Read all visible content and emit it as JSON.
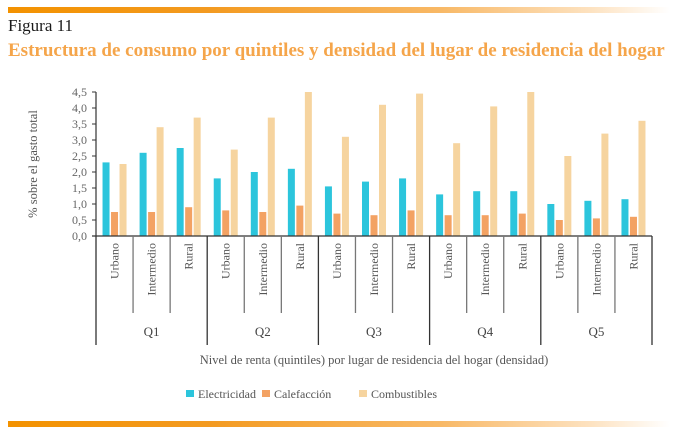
{
  "header": {
    "figure_label": "Figura 11",
    "title": "Estructura de consumo por quintiles y densidad del lugar de residencia del hogar"
  },
  "colors": {
    "rule": "#f39200",
    "title": "#f5a54a",
    "electricidad": "#2cc5dc",
    "calefaccion": "#f3a263",
    "combustibles": "#f6d49f",
    "axis": "#333333"
  },
  "chart_data": {
    "type": "bar",
    "title": "Estructura de consumo por quintiles y densidad del lugar de residencia del hogar",
    "xlabel": "Nivel de renta (quintiles) por lugar de residencia del hogar (densidad)",
    "ylabel": "% sobre el gasto total",
    "ylim": [
      0,
      4.5
    ],
    "yticks": [
      "0,0",
      "0,5",
      "1,0",
      "1,5",
      "2,0",
      "2,5",
      "3,0",
      "3,5",
      "4,0",
      "4,5"
    ],
    "groups": [
      "Q1",
      "Q2",
      "Q3",
      "Q4",
      "Q5"
    ],
    "subcategories": [
      "Urbano",
      "Intermedio",
      "Rural"
    ],
    "legend_position": "bottom",
    "grid": false,
    "series": [
      {
        "name": "Electricidad",
        "color_key": "electricidad",
        "values": [
          2.3,
          2.6,
          2.75,
          1.8,
          2.0,
          2.1,
          1.55,
          1.7,
          1.8,
          1.3,
          1.4,
          1.4,
          1.0,
          1.1,
          1.15
        ]
      },
      {
        "name": "Calefacción",
        "color_key": "calefaccion",
        "values": [
          0.75,
          0.75,
          0.9,
          0.8,
          0.75,
          0.95,
          0.7,
          0.65,
          0.8,
          0.65,
          0.65,
          0.7,
          0.5,
          0.55,
          0.6
        ]
      },
      {
        "name": "Combustibles",
        "color_key": "combustibles",
        "values": [
          2.25,
          3.4,
          3.7,
          2.7,
          3.7,
          4.5,
          3.1,
          4.1,
          4.45,
          2.9,
          4.05,
          4.5,
          2.5,
          3.2,
          3.6
        ]
      }
    ]
  }
}
